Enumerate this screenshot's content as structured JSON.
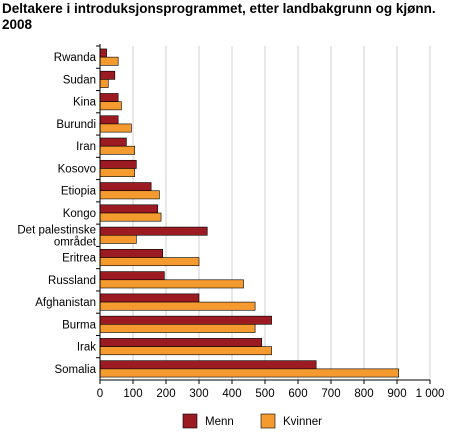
{
  "chart_data": {
    "type": "bar",
    "orientation": "horizontal",
    "title": "Deltakere i introduksjonsprogrammet, etter landbakgrunn og kjønn. 2008",
    "categories": [
      "Rwanda",
      "Sudan",
      "Kina",
      "Burundi",
      "Iran",
      "Kosovo",
      "Etiopia",
      "Kongo",
      "Det palestinske området",
      "Eritrea",
      "Russland",
      "Afghanistan",
      "Burma",
      "Irak",
      "Somalia"
    ],
    "category_lines": [
      [
        "Rwanda"
      ],
      [
        "Sudan"
      ],
      [
        "Kina"
      ],
      [
        "Burundi"
      ],
      [
        "Iran"
      ],
      [
        "Kosovo"
      ],
      [
        "Etiopia"
      ],
      [
        "Kongo"
      ],
      [
        "Det palestinske",
        "området"
      ],
      [
        "Eritrea"
      ],
      [
        "Russland"
      ],
      [
        "Afghanistan"
      ],
      [
        "Burma"
      ],
      [
        "Irak"
      ],
      [
        "Somalia"
      ]
    ],
    "series": [
      {
        "name": "Menn",
        "color": "#9c1a22",
        "values": [
          20,
          45,
          55,
          55,
          80,
          110,
          155,
          175,
          325,
          190,
          195,
          300,
          520,
          490,
          655
        ]
      },
      {
        "name": "Kvinner",
        "color": "#f59a2f",
        "values": [
          55,
          25,
          65,
          95,
          105,
          105,
          180,
          185,
          110,
          300,
          435,
          470,
          470,
          520,
          905
        ]
      }
    ],
    "xlim": [
      0,
      1000
    ],
    "xticks": [
      0,
      100,
      200,
      300,
      400,
      500,
      600,
      700,
      800,
      900,
      1000
    ],
    "xtick_labels": [
      "0",
      "100",
      "200",
      "300",
      "400",
      "500",
      "600",
      "700",
      "800",
      "900",
      "1 000"
    ],
    "grid": "vertical",
    "legend": "bottom"
  }
}
